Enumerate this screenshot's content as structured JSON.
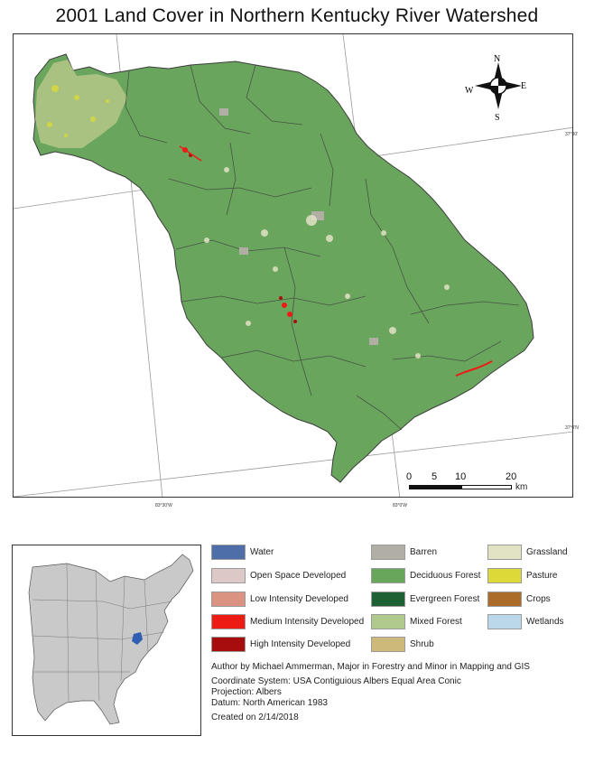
{
  "title": "2001 Land Cover in Northern Kentucky River Watershed",
  "map": {
    "compass": {
      "n": "N",
      "s": "S",
      "e": "E",
      "w": "W"
    },
    "graticule_labels": {
      "lat_upper": "37°30'",
      "lat_lower": "37°0'N",
      "lon_left": "83°30'W",
      "lon_right": "83°0'W"
    },
    "scale": {
      "labels": [
        "0",
        "5",
        "10",
        "20"
      ],
      "unit": "km"
    }
  },
  "legend": {
    "items": [
      {
        "label": "Water",
        "color": "#4d6ea8"
      },
      {
        "label": "Open Space Developed",
        "color": "#dcc8c7"
      },
      {
        "label": "Low Intensity Developed",
        "color": "#d99380"
      },
      {
        "label": "Medium Intensity Developed",
        "color": "#ee1b14"
      },
      {
        "label": "High Intensity Developed",
        "color": "#a80d0d"
      },
      {
        "label": "Barren",
        "color": "#b1aea6"
      },
      {
        "label": "Deciduous Forest",
        "color": "#68a65c"
      },
      {
        "label": "Evergreen Forest",
        "color": "#1d6135"
      },
      {
        "label": "Mixed Forest",
        "color": "#b0c98d"
      },
      {
        "label": "Shrub",
        "color": "#cdb97a"
      },
      {
        "label": "Grassland",
        "color": "#e2e2c5"
      },
      {
        "label": "Pasture",
        "color": "#dcd938"
      },
      {
        "label": "Crops",
        "color": "#ab6c29"
      },
      {
        "label": "Wetlands",
        "color": "#bad8ea"
      }
    ]
  },
  "credits": {
    "author": "Author by Michael Ammerman, Major in Forestry and Minor in Mapping and GIS",
    "coordinate_system": "Coordinate System: USA Contiguious Albers Equal Area Conic",
    "projection": "Projection: Albers",
    "datum": "Datum: North American 1983",
    "created": "Created on 2/14/2018"
  }
}
